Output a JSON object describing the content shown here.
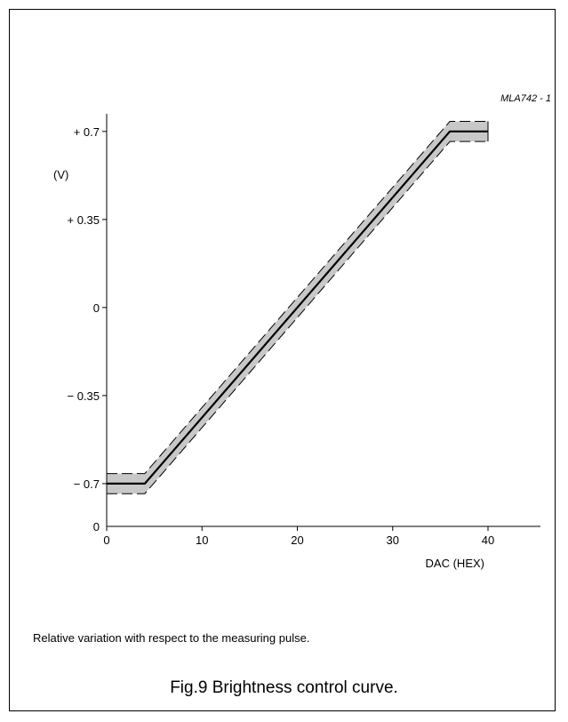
{
  "figure": {
    "code": "MLA742 - 1",
    "note": "Relative variation with respect to the measuring pulse.",
    "caption": "Fig.9  Brightness control curve."
  },
  "chart_data": {
    "type": "line",
    "title": "",
    "xlabel": "DAC (HEX)",
    "ylabel": "(V)",
    "x_ticks": [
      {
        "value": 0,
        "label": "0"
      },
      {
        "value": 10,
        "label": "10"
      },
      {
        "value": 20,
        "label": "20"
      },
      {
        "value": 30,
        "label": "30"
      },
      {
        "value": 40,
        "label": "40"
      }
    ],
    "y_ticks": [
      {
        "value": 0.7,
        "label": "+ 0.7"
      },
      {
        "value": 0.35,
        "label": "+ 0.35"
      },
      {
        "value": 0,
        "label": "0"
      },
      {
        "value": -0.35,
        "label": "− 0.35"
      },
      {
        "value": -0.7,
        "label": "− 0.7"
      }
    ],
    "y_origin_label": "0",
    "xlim": [
      0,
      45.5
    ],
    "ylim": [
      -0.87,
      0.77
    ],
    "series": [
      {
        "values_x": [
          0,
          4,
          36,
          40
        ],
        "values_y": [
          -0.7,
          -0.7,
          0.7,
          0.7
        ]
      }
    ],
    "tolerance_band": {
      "upper": {
        "x": [
          0,
          4,
          36,
          40
        ],
        "y": [
          -0.66,
          -0.66,
          0.74,
          0.74
        ]
      },
      "lower": {
        "x": [
          0,
          4,
          36,
          40
        ],
        "y": [
          -0.74,
          -0.74,
          0.66,
          0.66
        ]
      },
      "fill": "#c8c8c8"
    },
    "grid": false,
    "colors": {
      "line": "#000000",
      "band": "#c8c8c8"
    }
  }
}
